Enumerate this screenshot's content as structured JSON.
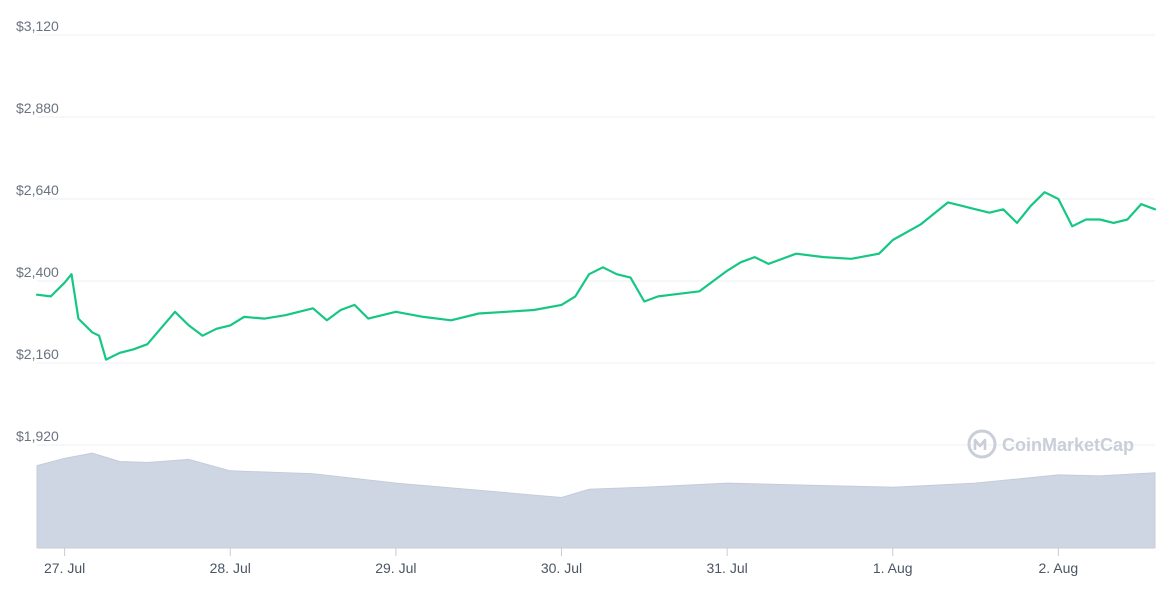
{
  "watermark": "CoinMarketCap",
  "colors": {
    "price_line": "#16c784",
    "volume_fill": "#cfd6e3",
    "grid": "#eceff3",
    "axis_text": "#6b7280"
  },
  "chart_data": {
    "type": "line",
    "title": "",
    "xlabel": "",
    "ylabel": "",
    "ylim": [
      1920,
      3120
    ],
    "xlim": [
      "2021-07-26T20:00",
      "2021-08-02T14:00"
    ],
    "grid": true,
    "y_ticks": [
      "$1,920",
      "$2,160",
      "$2,400",
      "$2,640",
      "$2,880",
      "$3,120"
    ],
    "y_tick_values": [
      1920,
      2160,
      2400,
      2640,
      2880,
      3120
    ],
    "x_ticks": [
      "27. Jul",
      "28. Jul",
      "29. Jul",
      "30. Jul",
      "31. Jul",
      "1. Aug",
      "2. Aug"
    ],
    "x_tick_values": [
      "2021-07-27T00:00",
      "2021-07-28T00:00",
      "2021-07-29T00:00",
      "2021-07-30T00:00",
      "2021-07-31T00:00",
      "2021-08-01T00:00",
      "2021-08-02T00:00"
    ],
    "series": [
      {
        "type": "line",
        "x": [
          "2021-07-26T20:00",
          "2021-07-26T22:00",
          "2021-07-27T00:00",
          "2021-07-27T01:00",
          "2021-07-27T02:00",
          "2021-07-27T04:00",
          "2021-07-27T05:00",
          "2021-07-27T06:00",
          "2021-07-27T08:00",
          "2021-07-27T10:00",
          "2021-07-27T12:00",
          "2021-07-27T16:00",
          "2021-07-27T18:00",
          "2021-07-27T20:00",
          "2021-07-27T22:00",
          "2021-07-28T00:00",
          "2021-07-28T02:00",
          "2021-07-28T05:00",
          "2021-07-28T08:00",
          "2021-07-28T12:00",
          "2021-07-28T14:00",
          "2021-07-28T16:00",
          "2021-07-28T18:00",
          "2021-07-28T20:00",
          "2021-07-28T22:00",
          "2021-07-29T00:00",
          "2021-07-29T04:00",
          "2021-07-29T08:00",
          "2021-07-29T12:00",
          "2021-07-29T16:00",
          "2021-07-29T20:00",
          "2021-07-30T00:00",
          "2021-07-30T02:00",
          "2021-07-30T04:00",
          "2021-07-30T06:00",
          "2021-07-30T08:00",
          "2021-07-30T10:00",
          "2021-07-30T12:00",
          "2021-07-30T14:00",
          "2021-07-30T16:00",
          "2021-07-30T20:00",
          "2021-07-31T00:00",
          "2021-07-31T02:00",
          "2021-07-31T04:00",
          "2021-07-31T06:00",
          "2021-07-31T10:00",
          "2021-07-31T14:00",
          "2021-07-31T18:00",
          "2021-07-31T22:00",
          "2021-08-01T00:00",
          "2021-08-01T04:00",
          "2021-08-01T08:00",
          "2021-08-01T10:00",
          "2021-08-01T12:00",
          "2021-08-01T14:00",
          "2021-08-01T16:00",
          "2021-08-01T18:00",
          "2021-08-01T20:00",
          "2021-08-01T22:00",
          "2021-08-02T00:00",
          "2021-08-02T02:00",
          "2021-08-02T04:00",
          "2021-08-02T06:00",
          "2021-08-02T08:00",
          "2021-08-02T10:00",
          "2021-08-02T12:00",
          "2021-08-02T14:00"
        ],
        "values": [
          2360,
          2355,
          2395,
          2420,
          2290,
          2250,
          2240,
          2170,
          2190,
          2200,
          2215,
          2310,
          2270,
          2240,
          2260,
          2270,
          2295,
          2290,
          2300,
          2320,
          2285,
          2315,
          2330,
          2290,
          2300,
          2310,
          2295,
          2285,
          2305,
          2310,
          2315,
          2330,
          2355,
          2420,
          2440,
          2420,
          2410,
          2340,
          2355,
          2360,
          2370,
          2430,
          2455,
          2470,
          2450,
          2480,
          2470,
          2465,
          2480,
          2520,
          2565,
          2630,
          2620,
          2610,
          2600,
          2610,
          2570,
          2620,
          2660,
          2640,
          2560,
          2580,
          2580,
          2570,
          2580,
          2625,
          2610
        ]
      }
    ],
    "volume_series": {
      "type": "area",
      "x": [
        "2021-07-26T20:00",
        "2021-07-27T00:00",
        "2021-07-27T04:00",
        "2021-07-27T08:00",
        "2021-07-27T12:00",
        "2021-07-27T18:00",
        "2021-07-28T00:00",
        "2021-07-28T12:00",
        "2021-07-29T00:00",
        "2021-07-29T12:00",
        "2021-07-30T00:00",
        "2021-07-30T04:00",
        "2021-07-30T12:00",
        "2021-07-31T00:00",
        "2021-07-31T12:00",
        "2021-08-01T00:00",
        "2021-08-01T12:00",
        "2021-08-02T00:00",
        "2021-08-02T06:00",
        "2021-08-02T14:00"
      ],
      "values": [
        0.8,
        0.87,
        0.92,
        0.84,
        0.83,
        0.86,
        0.75,
        0.72,
        0.63,
        0.56,
        0.49,
        0.57,
        0.59,
        0.63,
        0.61,
        0.59,
        0.63,
        0.71,
        0.7,
        0.73
      ]
    }
  }
}
